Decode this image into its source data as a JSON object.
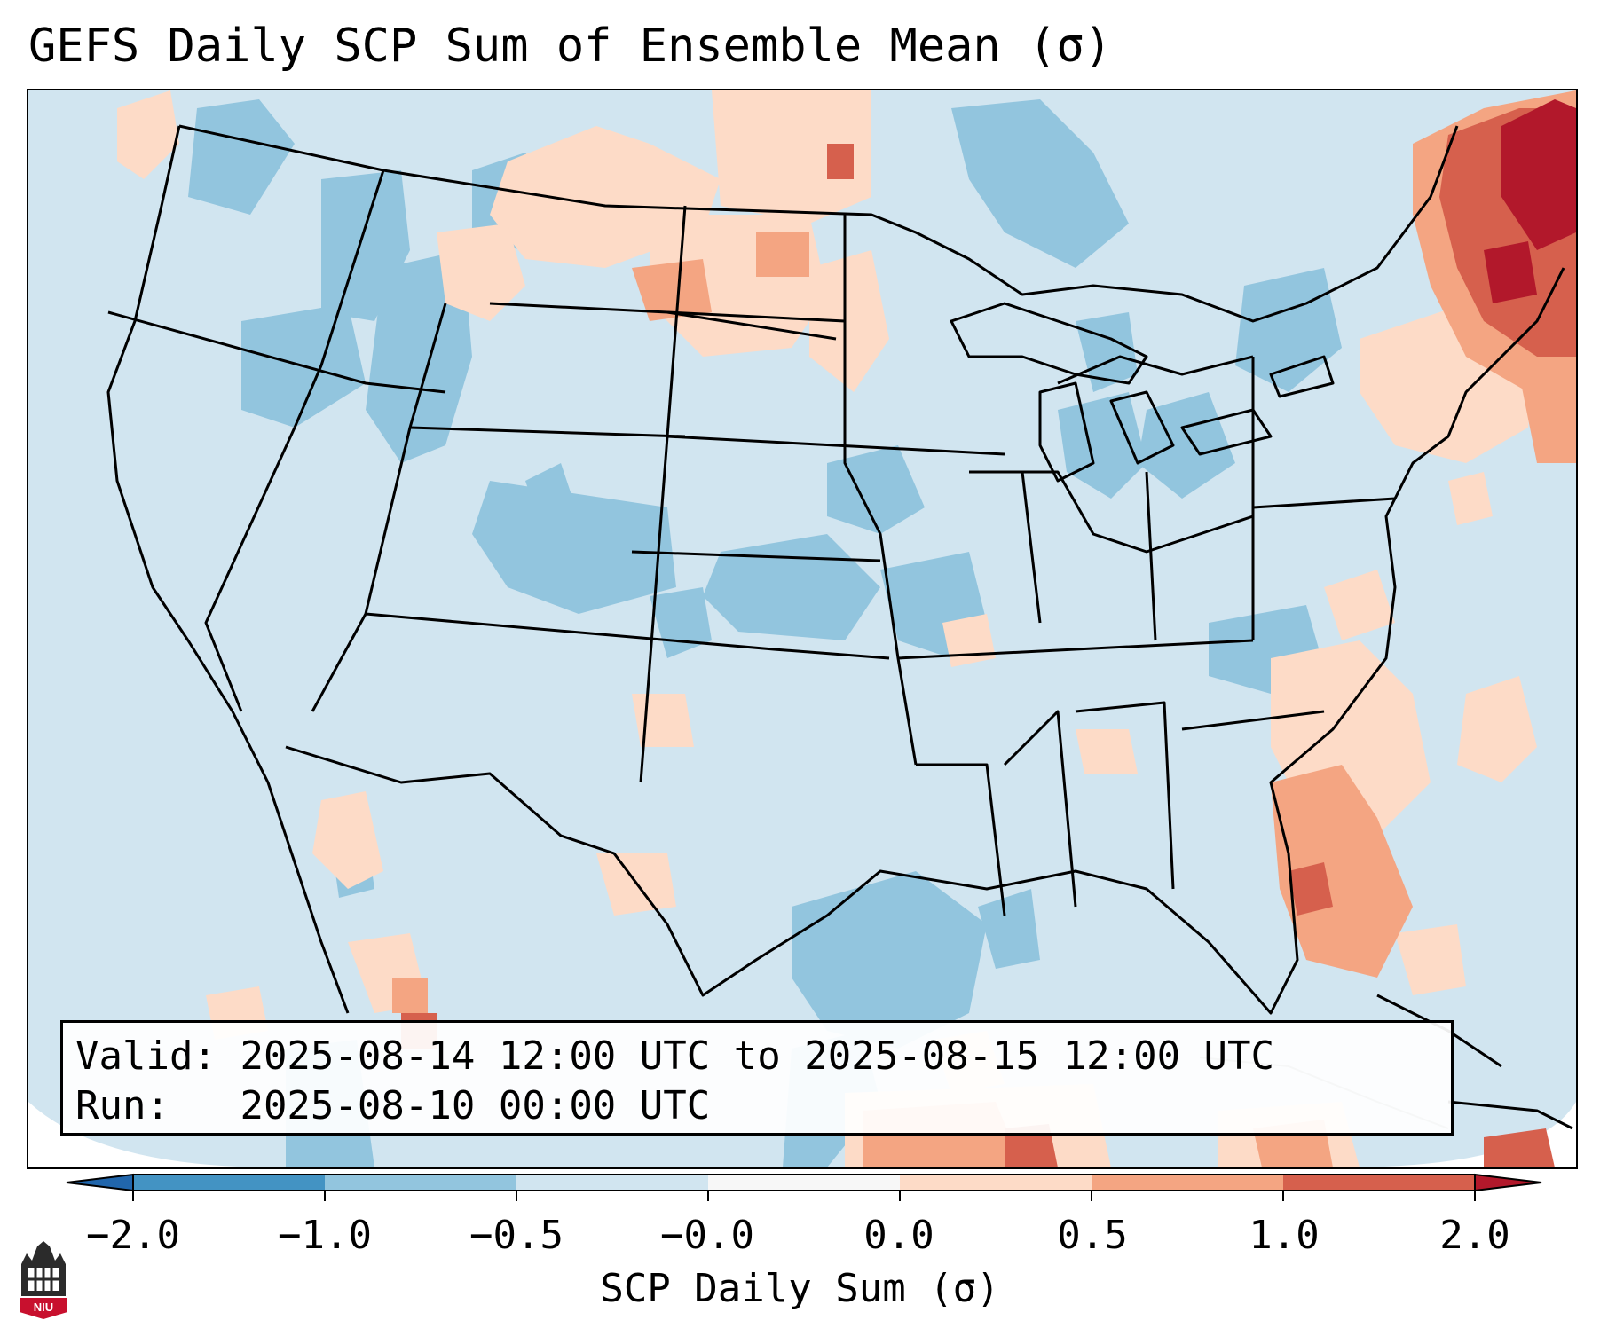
{
  "title": "GEFS Daily SCP Sum of Ensemble Mean (σ)",
  "info": {
    "valid_label": "Valid:",
    "valid_value": "2025-08-14 12:00 UTC to 2025-08-15 12:00 UTC",
    "run_label": "Run:",
    "run_value": "2025-08-10 00:00 UTC"
  },
  "colorbar": {
    "label": "SCP Daily Sum (σ)",
    "ticks": [
      "−2.0",
      "−1.0",
      "−0.5",
      "−0.0",
      "0.0",
      "0.5",
      "1.0",
      "2.0"
    ],
    "bins": [
      {
        "from": -2.0,
        "to": -1.0,
        "color": "#4393c3"
      },
      {
        "from": -1.0,
        "to": -0.5,
        "color": "#92c5de"
      },
      {
        "from": -0.5,
        "to": -0.0,
        "color": "#d1e5f0"
      },
      {
        "from": -0.0,
        "to": 0.0,
        "color": "#f7f7f7"
      },
      {
        "from": 0.0,
        "to": 0.5,
        "color": "#fddbc7"
      },
      {
        "from": 0.5,
        "to": 1.0,
        "color": "#f4a582"
      },
      {
        "from": 1.0,
        "to": 2.0,
        "color": "#d6604d"
      }
    ],
    "under_color": "#2166ac",
    "over_color": "#b2182b"
  },
  "map": {
    "background_color": "#d1e5f0",
    "outside_color": "#ffffff",
    "logo_text": "NIU"
  }
}
